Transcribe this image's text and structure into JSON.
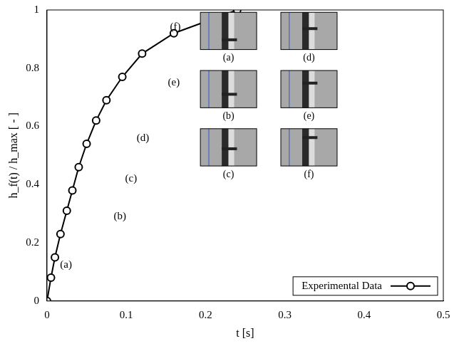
{
  "chart_data": {
    "type": "line",
    "x_label": "t [s]",
    "y_label": "h_f(t) / h_max [ - ]",
    "series": [
      {
        "name": "Experimental Data",
        "color": "#000000",
        "marker": "circle",
        "line_style": "solid",
        "x": [
          0,
          0.005,
          0.01,
          0.017,
          0.025,
          0.032,
          0.04,
          0.05,
          0.062,
          0.075,
          0.095,
          0.12,
          0.16,
          0.24
        ],
        "values": [
          0,
          0.08,
          0.15,
          0.23,
          0.31,
          0.38,
          0.46,
          0.54,
          0.62,
          0.69,
          0.77,
          0.85,
          0.92,
          1.0
        ]
      }
    ],
    "xlim": [
      0,
      0.5
    ],
    "xticks": [
      0,
      0.1,
      0.2,
      0.3,
      0.4,
      0.5
    ],
    "ylim": [
      0,
      1
    ],
    "yticks": [
      0,
      0.2,
      0.4,
      0.6,
      0.8,
      1
    ],
    "grid": false,
    "legend": "lower right",
    "annotations": [
      {
        "text": "(a)",
        "x": 0.024,
        "y": 0.125
      },
      {
        "text": "(b)",
        "x": 0.092,
        "y": 0.29
      },
      {
        "text": "(c)",
        "x": 0.106,
        "y": 0.42
      },
      {
        "text": "(d)",
        "x": 0.121,
        "y": 0.56
      },
      {
        "text": "(e)",
        "x": 0.16,
        "y": 0.75
      },
      {
        "text": "(f)",
        "x": 0.162,
        "y": 0.94
      }
    ],
    "insets": [
      "(a)",
      "(b)",
      "(c)",
      "(d)",
      "(e)",
      "(f)"
    ]
  }
}
